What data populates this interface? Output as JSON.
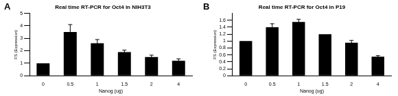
{
  "chart_data": [
    {
      "type": "bar",
      "panel": "A",
      "title": "Real time RT-PCR for Oct4 in NIH3T3",
      "x_label": "Nanog (ug)",
      "y_label": "FS (Expression)",
      "categories": [
        "0",
        "0.5",
        "1",
        "1.5",
        "2",
        "4"
      ],
      "values": [
        1.0,
        3.5,
        2.6,
        1.9,
        1.5,
        1.2
      ],
      "errors": [
        0,
        0.6,
        0.3,
        0.15,
        0.15,
        0.15
      ],
      "color": "#000000",
      "ylim": [
        0,
        5
      ],
      "yticks": [
        0,
        1,
        2,
        3,
        4,
        5
      ],
      "grid": false
    },
    {
      "type": "bar",
      "panel": "B",
      "title": "Real time RT-PCR for Oct4 in P19",
      "x_label": "Nanog (ug)",
      "y_label": "FS (Expression)",
      "categories": [
        "0",
        "0.5",
        "1",
        "1.5",
        "2",
        "4"
      ],
      "values": [
        1.0,
        1.4,
        1.55,
        1.2,
        0.95,
        0.55
      ],
      "errors": [
        0,
        0.1,
        0.08,
        0,
        0.07,
        0.03
      ],
      "color": "#000000",
      "ylim": [
        0,
        1.8
      ],
      "yticks": [
        0,
        0.2,
        0.4,
        0.6,
        0.8,
        1,
        1.2,
        1.4,
        1.6
      ],
      "grid": false
    }
  ]
}
